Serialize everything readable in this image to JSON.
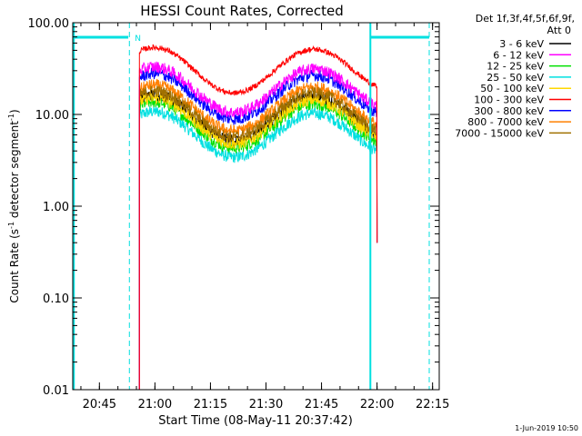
{
  "chart_data": {
    "type": "line",
    "title": "HESSI Count Rates, Corrected",
    "xlabel": "Start Time (08-May-11 20:37:42)",
    "ylabel_main": "Count Rate (s",
    "ylabel_sup1": "-1",
    "ylabel_mid": " detector segment",
    "ylabel_sup2": "-1",
    "ylabel_end": ")",
    "y_scale": "log",
    "ylim": [
      0.01,
      100.0
    ],
    "xlim_minutes": [
      20.63,
      22.28
    ],
    "x_ticks": [
      {
        "label": "20:45",
        "t": 20.75
      },
      {
        "label": "21:00",
        "t": 21.0
      },
      {
        "label": "21:15",
        "t": 21.25
      },
      {
        "label": "21:30",
        "t": 21.5
      },
      {
        "label": "21:45",
        "t": 21.75
      },
      {
        "label": "22:00",
        "t": 22.0
      },
      {
        "label": "22:15",
        "t": 22.25
      }
    ],
    "y_ticks": [
      {
        "label": "100.00",
        "v": 100
      },
      {
        "label": "10.00",
        "v": 10
      },
      {
        "label": "1.00",
        "v": 1
      },
      {
        "label": "0.10",
        "v": 0.1
      },
      {
        "label": "0.01",
        "v": 0.01
      }
    ],
    "legend_header": [
      "Det 1f,3f,4f,5f,6f,9f,",
      "Att 0"
    ],
    "legend_position": "right",
    "series": [
      {
        "name": "3 - 6 keV",
        "color": "#000000",
        "level": 0.46
      },
      {
        "name": "6 - 12 keV",
        "color": "#ff00ff",
        "level": 0.92
      },
      {
        "name": "12 - 25 keV",
        "color": "#00e000",
        "level": 0.38
      },
      {
        "name": "25 - 50 keV",
        "color": "#00e0e0",
        "level": 0.3
      },
      {
        "name": "50 - 100 keV",
        "color": "#ffd700",
        "level": 0.42
      },
      {
        "name": "100 - 300 keV",
        "color": "#ff0000",
        "level": 1.5
      },
      {
        "name": "300 - 800 keV",
        "color": "#0000ff",
        "level": 0.78
      },
      {
        "name": "800 - 7000 keV",
        "color": "#ff8000",
        "level": 0.58
      },
      {
        "name": "7000 - 15000 keV",
        "color": "#a07000",
        "level": 0.5
      }
    ],
    "data_interval": [
      20.93,
      22.0
    ],
    "attenuator_marker": "N",
    "footer_timestamp": "1-Jun-2019 10:50"
  }
}
